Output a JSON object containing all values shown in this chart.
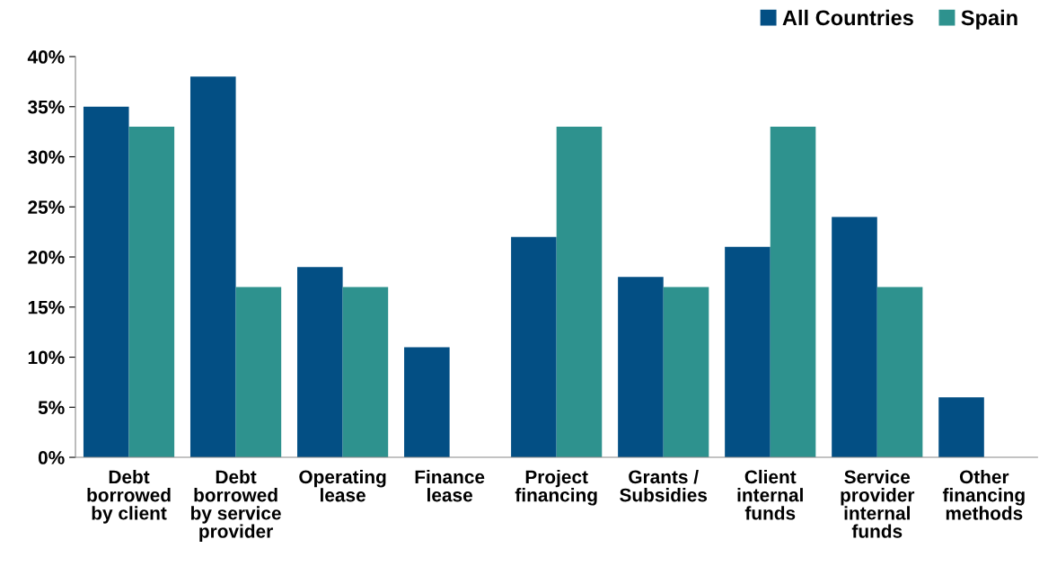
{
  "chart_data": {
    "type": "bar",
    "categories": [
      "Debt\nborrowed\nby client",
      "Debt\nborrowed\nby service\nprovider",
      "Operating\nlease",
      "Finance\nlease",
      "Project\nfinancing",
      "Grants /\nSubsidies",
      "Client\ninternal\nfunds",
      "Service\nprovider\ninternal\nfunds",
      "Other\nfinancing\nmethods"
    ],
    "series": [
      {
        "name": "All Countries",
        "color": "#034f84",
        "values": [
          35,
          38,
          19,
          11,
          22,
          18,
          21,
          24,
          6
        ]
      },
      {
        "name": "Spain",
        "color": "#2e928e",
        "values": [
          33,
          17,
          17,
          0,
          33,
          17,
          33,
          17,
          0
        ]
      }
    ],
    "ylim": [
      0,
      40
    ],
    "yticks": [
      {
        "value": 0,
        "label": "0%"
      },
      {
        "value": 5,
        "label": "5%"
      },
      {
        "value": 10,
        "label": "10%"
      },
      {
        "value": 15,
        "label": "15%"
      },
      {
        "value": 20,
        "label": "20%"
      },
      {
        "value": 25,
        "label": "25%"
      },
      {
        "value": 30,
        "label": "30%"
      },
      {
        "value": 35,
        "label": "35%"
      },
      {
        "value": 40,
        "label": "40%"
      }
    ],
    "grid": false,
    "legend": "top right"
  }
}
